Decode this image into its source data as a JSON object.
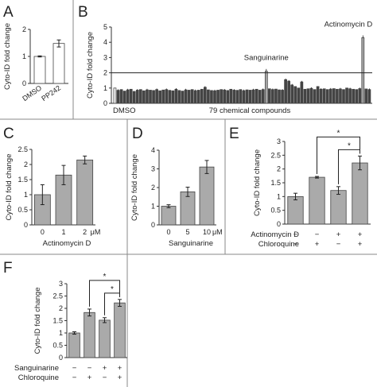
{
  "chart_data": [
    {
      "panel": "A",
      "type": "bar",
      "categories": [
        "DMSO",
        "PP242"
      ],
      "values": [
        1.0,
        1.48
      ],
      "errors": [
        0.02,
        0.13
      ],
      "ylabel": "Cyto-ID fold change",
      "ylim": [
        0,
        2
      ],
      "yticks": [
        "0",
        "1",
        "2"
      ]
    },
    {
      "panel": "B",
      "type": "bar",
      "xlabel_left": "DMSO",
      "xlabel": "79 chemical compounds",
      "ylabel": "Cyto-ID fold change",
      "ylim": [
        0,
        5
      ],
      "yticks": [
        "0",
        "1",
        "2",
        "3",
        "4",
        "5"
      ],
      "threshold": 2,
      "annotations": [
        {
          "text": "Sanguinarine",
          "index": 47
        },
        {
          "text": "Actinomycin D",
          "index": 77
        }
      ],
      "values": [
        1.0,
        0.85,
        0.9,
        0.8,
        0.88,
        0.92,
        0.78,
        0.86,
        0.9,
        0.82,
        0.88,
        0.86,
        0.84,
        0.9,
        0.82,
        0.87,
        0.9,
        0.85,
        0.82,
        0.92,
        0.84,
        0.8,
        0.88,
        0.86,
        0.9,
        0.83,
        0.86,
        0.92,
        1.05,
        0.88,
        0.84,
        0.82,
        0.86,
        0.9,
        0.87,
        0.84,
        0.92,
        0.86,
        0.85,
        0.9,
        0.83,
        0.88,
        0.86,
        0.88,
        0.92,
        0.86,
        0.9,
        2.1,
        0.95,
        0.9,
        0.93,
        0.88,
        0.86,
        1.55,
        1.45,
        1.2,
        1.1,
        1.0,
        1.4,
        0.92,
        0.95,
        0.98,
        0.9,
        1.1,
        0.92,
        0.95,
        0.9,
        0.93,
        0.96,
        0.92,
        0.94,
        0.9,
        1.0,
        0.95,
        0.92,
        0.9,
        0.96,
        4.3,
        0.94,
        0.9
      ]
    },
    {
      "panel": "C",
      "type": "bar",
      "categories": [
        "0",
        "1",
        "2"
      ],
      "unit": "μM",
      "values": [
        1.0,
        1.65,
        2.15
      ],
      "errors": [
        0.33,
        0.32,
        0.13
      ],
      "xlabel": "Actinomycin D",
      "ylabel": "Cyto-ID fold change",
      "ylim": [
        0,
        2.5
      ],
      "yticks": [
        "0",
        "0.5",
        "1",
        "1.5",
        "2",
        "2.5"
      ]
    },
    {
      "panel": "D",
      "type": "bar",
      "categories": [
        "0",
        "5",
        "10"
      ],
      "unit": "μM",
      "values": [
        1.0,
        1.77,
        3.1
      ],
      "errors": [
        0.08,
        0.25,
        0.35
      ],
      "xlabel": "Sanguinarine",
      "ylabel": "Cyto-ID fold change",
      "ylim": [
        0,
        4
      ],
      "yticks": [
        "0",
        "1",
        "2",
        "3",
        "4"
      ]
    },
    {
      "panel": "E",
      "type": "bar",
      "values": [
        1.0,
        1.7,
        1.22,
        2.22
      ],
      "errors": [
        0.12,
        0.03,
        0.14,
        0.25
      ],
      "ylabel": "Cyto-ID fold change",
      "ylim": [
        0,
        3
      ],
      "yticks": [
        "0",
        "0.5",
        "1",
        "1.5",
        "2",
        "2.5",
        "3"
      ],
      "row_labels": [
        "Actinomycin D",
        "Chloroquine"
      ],
      "row_signs": [
        [
          "−",
          "−",
          "+",
          "+"
        ],
        [
          "−",
          "+",
          "−",
          "+"
        ]
      ],
      "significance": [
        {
          "from": 1,
          "to": 3,
          "label": "*"
        },
        {
          "from": 2,
          "to": 3,
          "label": "*"
        }
      ]
    },
    {
      "panel": "F",
      "type": "bar",
      "values": [
        1.0,
        1.83,
        1.52,
        2.22
      ],
      "errors": [
        0.05,
        0.14,
        0.1,
        0.14
      ],
      "ylabel": "Cyto-ID fold change",
      "ylim": [
        0,
        3
      ],
      "yticks": [
        "0",
        "0.5",
        "1",
        "1.5",
        "2",
        "2.5",
        "3"
      ],
      "row_labels": [
        "Sanguinarine",
        "Chloroquine"
      ],
      "row_signs": [
        [
          "−",
          "−",
          "+",
          "+"
        ],
        [
          "−",
          "+",
          "−",
          "+"
        ]
      ],
      "significance": [
        {
          "from": 1,
          "to": 3,
          "label": "*"
        },
        {
          "from": 2,
          "to": 3,
          "label": "*"
        }
      ]
    }
  ],
  "colors": {
    "bar_white": "#ffffff",
    "bar_gray": "#aaaaaa",
    "bar_dark": "#444444",
    "axis": "#333333",
    "divider": "#888888"
  }
}
